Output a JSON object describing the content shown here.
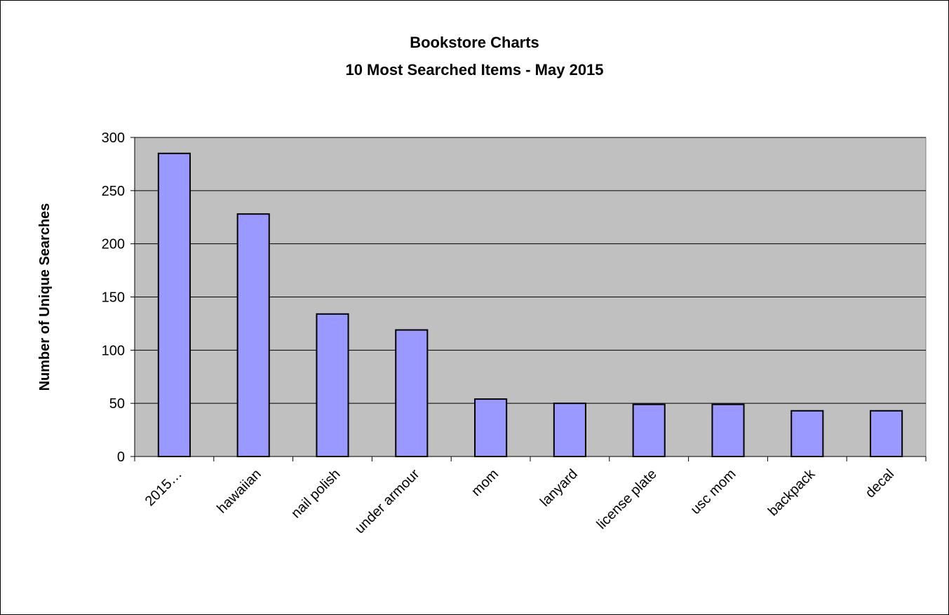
{
  "chart_data": {
    "type": "bar",
    "title": "Bookstore Charts",
    "subtitle": "10 Most Searched Items - May 2015",
    "xlabel": "",
    "ylabel": "Number of Unique Searches",
    "categories": [
      "2015…",
      "hawaiian",
      "nail polish",
      "under armour",
      "mom",
      "lanyard",
      "license plate",
      "usc mom",
      "backpack",
      "decal"
    ],
    "values": [
      285,
      228,
      134,
      119,
      54,
      50,
      49,
      49,
      43,
      43
    ],
    "ylim": [
      0,
      300
    ],
    "yticks": [
      "0",
      "50",
      "100",
      "150",
      "200",
      "250",
      "300"
    ],
    "grid": true,
    "legend": "none",
    "colors": {
      "plot_background": "#c0c0c0",
      "bar_fill": "#9999ff",
      "bar_stroke": "#000000",
      "gridline": "#000000"
    }
  }
}
